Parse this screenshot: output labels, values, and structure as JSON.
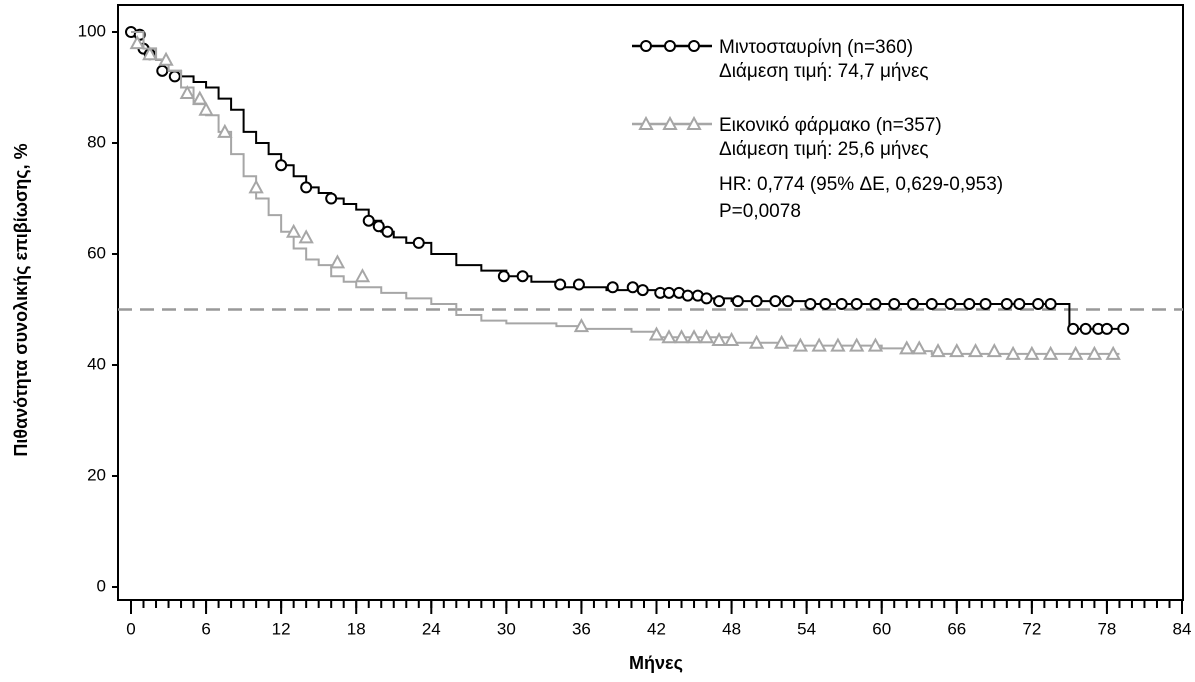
{
  "chart_data": {
    "type": "step",
    "y_label": "Πιθανότητα συνολικής επιβίωσης, %",
    "x_label": "Μήνες",
    "xlim": [
      0,
      84
    ],
    "xticks": [
      0,
      6,
      12,
      18,
      24,
      30,
      36,
      42,
      48,
      54,
      60,
      66,
      72,
      78,
      84
    ],
    "x_minor_tick_step": 1,
    "ylim": [
      0,
      100
    ],
    "yticks": [
      0,
      20,
      40,
      60,
      80,
      100
    ],
    "reference_line": 50,
    "reference_color": "#999999",
    "series": [
      {
        "name": "Μιντοσταυρίνη (n=360)",
        "note": "Διάμεση τιμή: 74,7 μήνες",
        "color": "#000000",
        "marker": "circle",
        "x": [
          0,
          1,
          2,
          3,
          4,
          5,
          6,
          7,
          8,
          9,
          10,
          11,
          12,
          13,
          14,
          15,
          16,
          17,
          18,
          19,
          20,
          21,
          22,
          23,
          24,
          26,
          28,
          30,
          32,
          34,
          36,
          38,
          40,
          42,
          44,
          46,
          48,
          50,
          52,
          54,
          60,
          66,
          72,
          75,
          79
        ],
        "values": [
          100,
          97,
          95,
          93,
          92,
          91,
          90,
          88,
          86,
          82,
          80,
          78,
          76,
          74,
          72,
          71,
          70,
          69,
          68,
          66,
          64,
          63,
          62,
          62,
          60,
          58,
          57,
          56,
          55,
          54,
          54,
          53.5,
          53.5,
          53,
          52.5,
          52,
          51.5,
          51.5,
          51.5,
          51,
          51,
          51,
          51,
          46.5,
          46.5
        ],
        "censored_x": [
          0,
          0.7,
          1,
          1.5,
          2.5,
          3.5,
          12,
          14,
          16,
          19,
          19.8,
          20.5,
          23,
          29.8,
          31.3,
          34.3,
          35.8,
          38.5,
          40.1,
          40.9,
          42.3,
          43,
          43.8,
          44.5,
          45.3,
          46,
          47,
          48.5,
          50,
          51.5,
          52.5,
          54.3,
          55.5,
          56.8,
          58,
          59.5,
          61,
          62.5,
          64,
          65.5,
          67,
          68.3,
          70,
          71,
          72.5,
          73.5,
          75.3,
          76.3,
          77.3,
          78,
          79.3
        ],
        "censored_y": [
          100,
          99.5,
          97,
          96,
          93,
          92,
          76,
          72,
          70,
          66,
          65,
          64,
          62,
          56,
          56,
          54.5,
          54.5,
          54,
          54,
          53.5,
          53,
          53,
          53,
          52.5,
          52.5,
          52,
          51.5,
          51.5,
          51.5,
          51.5,
          51.5,
          51,
          51,
          51,
          51,
          51,
          51,
          51,
          51,
          51,
          51,
          51,
          51,
          51,
          51,
          51,
          46.5,
          46.5,
          46.5,
          46.5,
          46.5
        ]
      },
      {
        "name": "Εικονικό φάρμακο (n=357)",
        "note": "Διάμεση τιμή: 25,6 μήνες",
        "color": "#a6a6a6",
        "marker": "triangle",
        "x": [
          0,
          1,
          2,
          3,
          4,
          5,
          6,
          7,
          8,
          9,
          10,
          11,
          12,
          13,
          14,
          15,
          16,
          17,
          18,
          20,
          22,
          24,
          26,
          28,
          30,
          34,
          36,
          40,
          42,
          44,
          48,
          52,
          56,
          60,
          62,
          64,
          72,
          76,
          79
        ],
        "values": [
          100,
          97,
          95,
          93,
          90,
          87,
          85,
          82,
          78,
          74,
          70,
          67,
          64,
          61,
          59,
          58,
          56,
          55,
          54,
          53,
          52,
          51,
          49,
          48,
          47.5,
          47,
          46.5,
          46,
          45,
          45,
          44,
          43.5,
          43.5,
          43,
          42.5,
          42,
          42,
          42,
          42
        ],
        "censored_x": [
          0.5,
          1.5,
          2.8,
          4.5,
          5.5,
          6,
          7.5,
          10,
          13,
          14,
          16.5,
          18.5,
          36,
          42,
          43,
          44,
          45,
          46,
          47,
          48,
          50,
          52,
          53.5,
          55,
          56.5,
          58,
          59.5,
          62,
          63,
          64.5,
          66,
          67.5,
          69,
          70.5,
          72,
          73.5,
          75.5,
          77,
          78.5
        ],
        "censored_y": [
          98,
          96,
          95,
          89,
          88,
          86,
          82,
          72,
          64,
          63,
          58.5,
          56,
          47,
          45.5,
          45,
          45,
          45,
          45,
          44.5,
          44.5,
          44,
          44,
          43.5,
          43.5,
          43.5,
          43.5,
          43.5,
          43,
          43,
          42.5,
          42.5,
          42.5,
          42.5,
          42,
          42,
          42,
          42,
          42,
          42
        ]
      }
    ],
    "annotations": [
      "HR: 0,774 (95% ΔΕ, 0,629-0,953)",
      "P=0,0078"
    ]
  }
}
